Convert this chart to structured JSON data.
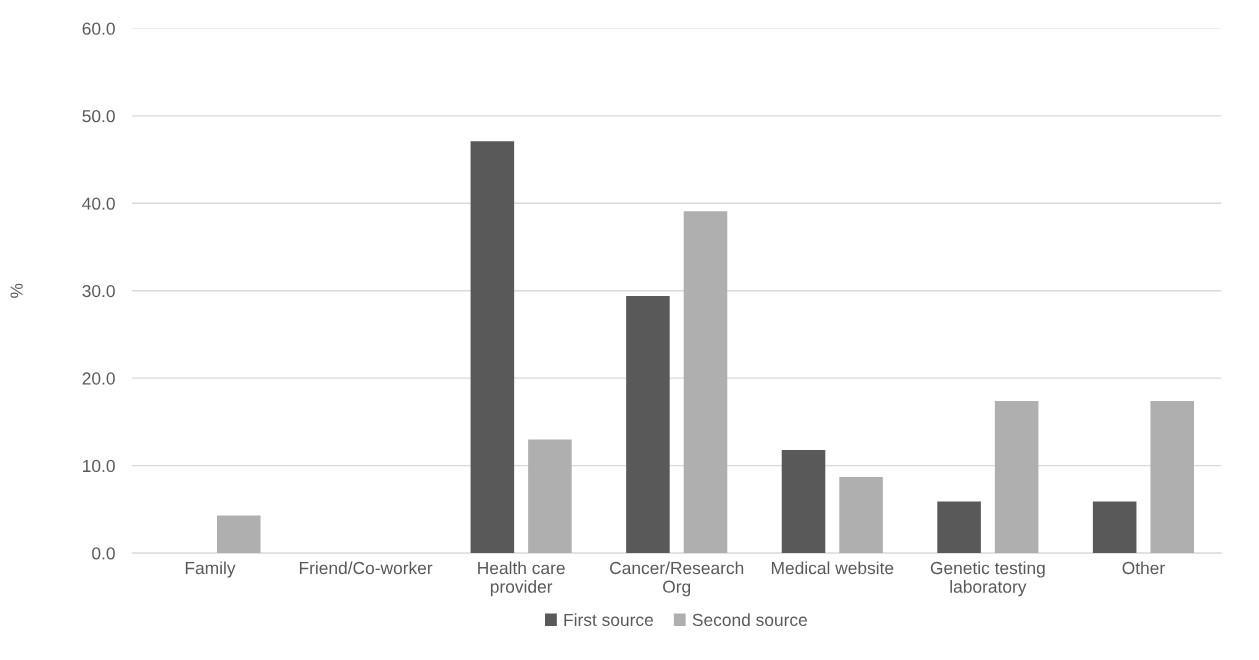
{
  "chart_data": {
    "type": "bar",
    "ylabel": "%",
    "categories": [
      "Family",
      "Friend/Co-worker",
      "Health care provider",
      "Cancer/Research Org",
      "Medical website",
      "Genetic testing laboratory",
      "Other"
    ],
    "series": [
      {
        "name": "First source",
        "color": "#595959",
        "values": [
          0,
          0,
          47.1,
          29.4,
          11.8,
          5.9,
          5.9
        ]
      },
      {
        "name": "Second source",
        "color": "#afafaf",
        "values": [
          4.3,
          0,
          13.0,
          39.1,
          8.7,
          17.4,
          17.4
        ]
      }
    ],
    "ylim": [
      0,
      60
    ],
    "yticks": [
      {
        "value": 0,
        "label": "0.0"
      },
      {
        "value": 10,
        "label": "10.0"
      },
      {
        "value": 20,
        "label": "20.0"
      },
      {
        "value": 30,
        "label": "30.0"
      },
      {
        "value": 40,
        "label": "40.0"
      },
      {
        "value": 50,
        "label": "50.0"
      },
      {
        "value": 60,
        "label": "60.0"
      }
    ],
    "grid": "y",
    "legend": "bottom"
  }
}
